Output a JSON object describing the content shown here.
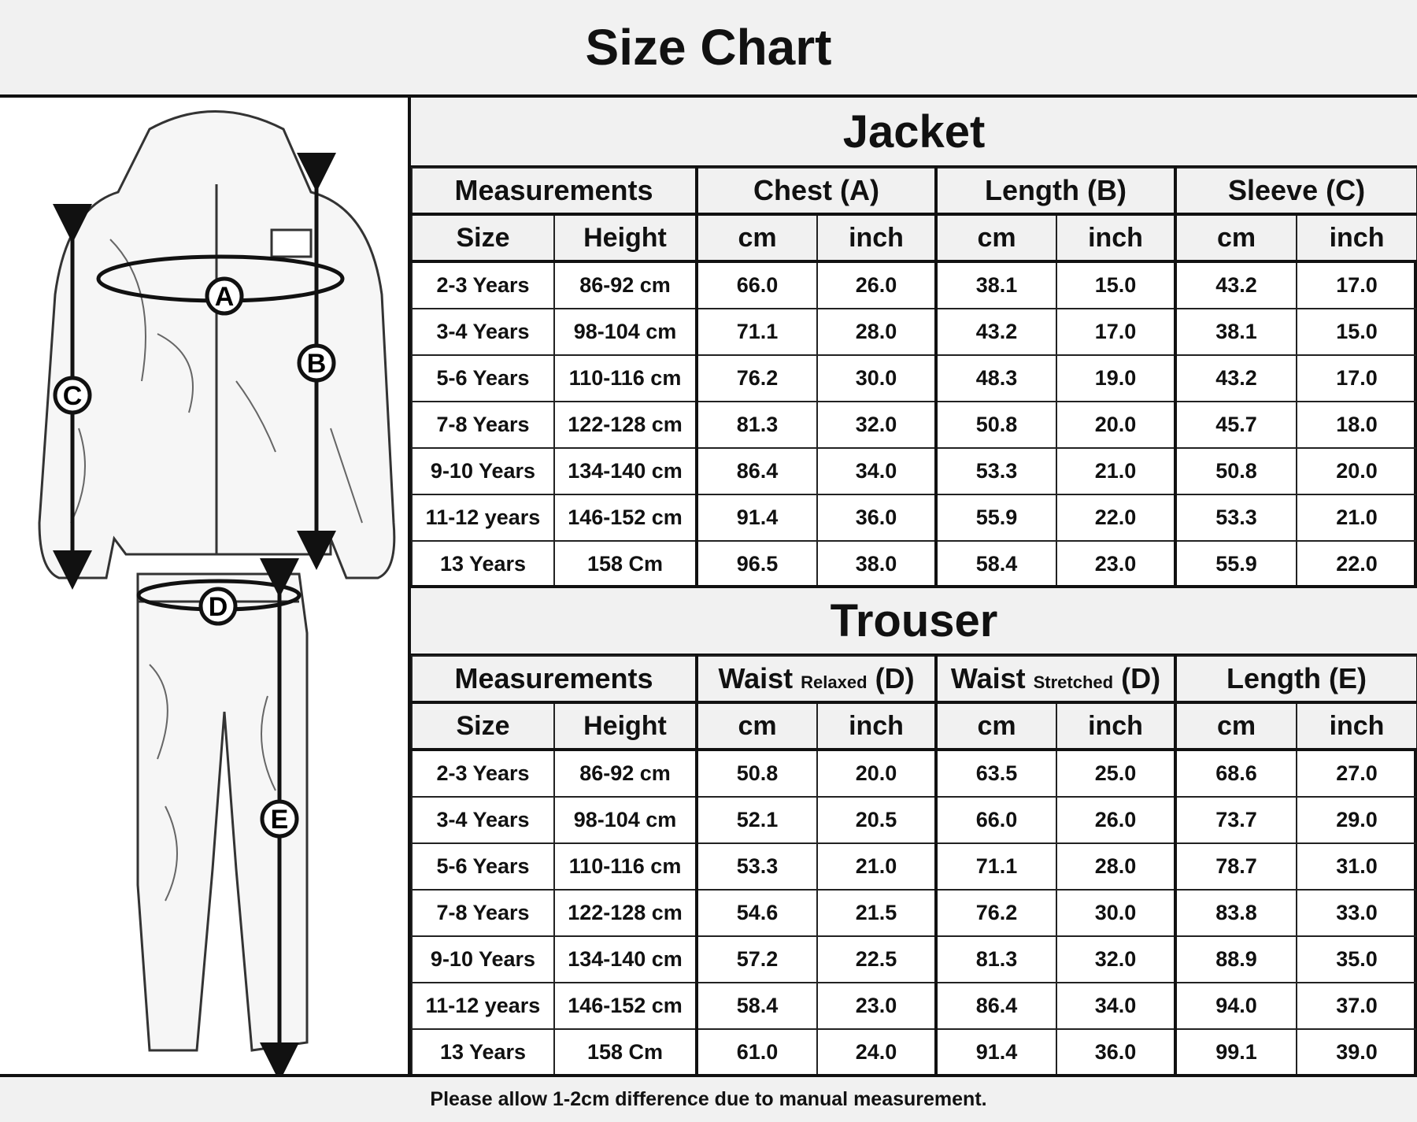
{
  "title": "Size Chart",
  "footer": "Please allow 1-2cm difference due to manual measurement.",
  "diagram_labels": [
    "A",
    "B",
    "C",
    "D",
    "E"
  ],
  "jacket": {
    "title": "Jacket",
    "groups": [
      {
        "label": "Measurements"
      },
      {
        "label": "Chest (A)"
      },
      {
        "label": "Length (B)"
      },
      {
        "label": "Sleeve (C)"
      }
    ],
    "subheaders": [
      "Size",
      "Height",
      "cm",
      "inch",
      "cm",
      "inch",
      "cm",
      "inch"
    ],
    "rows": [
      [
        "2-3 Years",
        "86-92 cm",
        "66.0",
        "26.0",
        "38.1",
        "15.0",
        "43.2",
        "17.0"
      ],
      [
        "3-4 Years",
        "98-104 cm",
        "71.1",
        "28.0",
        "43.2",
        "17.0",
        "38.1",
        "15.0"
      ],
      [
        "5-6 Years",
        "110-116 cm",
        "76.2",
        "30.0",
        "48.3",
        "19.0",
        "43.2",
        "17.0"
      ],
      [
        "7-8 Years",
        "122-128 cm",
        "81.3",
        "32.0",
        "50.8",
        "20.0",
        "45.7",
        "18.0"
      ],
      [
        "9-10 Years",
        "134-140 cm",
        "86.4",
        "34.0",
        "53.3",
        "21.0",
        "50.8",
        "20.0"
      ],
      [
        "11-12 years",
        "146-152 cm",
        "91.4",
        "36.0",
        "55.9",
        "22.0",
        "53.3",
        "21.0"
      ],
      [
        "13 Years",
        "158 Cm",
        "96.5",
        "38.0",
        "58.4",
        "23.0",
        "55.9",
        "22.0"
      ]
    ]
  },
  "trouser": {
    "title": "Trouser",
    "groups": [
      {
        "label": "Measurements"
      },
      {
        "label": "Waist",
        "small": "Relaxed",
        "suffix": "(D)"
      },
      {
        "label": "Waist",
        "small": "Stretched",
        "suffix": "(D)"
      },
      {
        "label": "Length (E)"
      }
    ],
    "subheaders": [
      "Size",
      "Height",
      "cm",
      "inch",
      "cm",
      "inch",
      "cm",
      "inch"
    ],
    "rows": [
      [
        "2-3 Years",
        "86-92 cm",
        "50.8",
        "20.0",
        "63.5",
        "25.0",
        "68.6",
        "27.0"
      ],
      [
        "3-4 Years",
        "98-104 cm",
        "52.1",
        "20.5",
        "66.0",
        "26.0",
        "73.7",
        "29.0"
      ],
      [
        "5-6 Years",
        "110-116 cm",
        "53.3",
        "21.0",
        "71.1",
        "28.0",
        "78.7",
        "31.0"
      ],
      [
        "7-8 Years",
        "122-128 cm",
        "54.6",
        "21.5",
        "76.2",
        "30.0",
        "83.8",
        "33.0"
      ],
      [
        "9-10 Years",
        "134-140 cm",
        "57.2",
        "22.5",
        "81.3",
        "32.0",
        "88.9",
        "35.0"
      ],
      [
        "11-12 years",
        "146-152 cm",
        "58.4",
        "23.0",
        "86.4",
        "34.0",
        "94.0",
        "37.0"
      ],
      [
        "13 Years",
        "158 Cm",
        "61.0",
        "24.0",
        "91.4",
        "36.0",
        "99.1",
        "39.0"
      ]
    ]
  }
}
